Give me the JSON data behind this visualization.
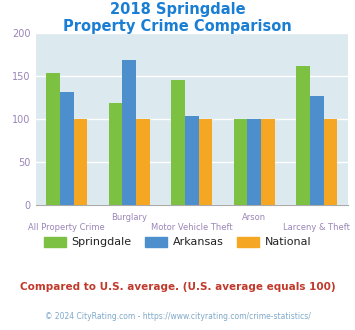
{
  "title_line1": "2018 Springdale",
  "title_line2": "Property Crime Comparison",
  "category_labels_top": [
    "",
    "Burglary",
    "",
    "Arson",
    ""
  ],
  "category_labels_bottom": [
    "All Property Crime",
    "",
    "Motor Vehicle Theft",
    "",
    "Larceny & Theft"
  ],
  "springdale": [
    153,
    118,
    145,
    100,
    161
  ],
  "arkansas": [
    131,
    168,
    103,
    100,
    127
  ],
  "national": [
    100,
    100,
    100,
    100,
    100
  ],
  "springdale_color": "#7cc142",
  "arkansas_color": "#4d8fcc",
  "national_color": "#f5a623",
  "plot_bg_color": "#dce9ef",
  "ylim": [
    0,
    200
  ],
  "yticks": [
    0,
    50,
    100,
    150,
    200
  ],
  "legend_labels": [
    "Springdale",
    "Arkansas",
    "National"
  ],
  "footnote": "Compared to U.S. average. (U.S. average equals 100)",
  "copyright": "© 2024 CityRating.com - https://www.cityrating.com/crime-statistics/",
  "title_color": "#1a7fd4",
  "footnote_color": "#c0392b",
  "copyright_color": "#7fa8c9",
  "tick_color": "#9b85b8",
  "grid_color": "#ffffff",
  "bar_width": 0.22
}
